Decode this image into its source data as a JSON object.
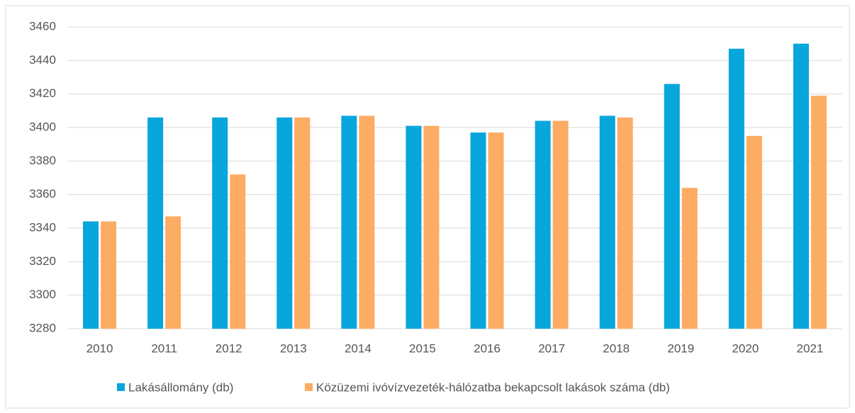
{
  "chart_data": {
    "type": "bar",
    "categories": [
      "2010",
      "2011",
      "2012",
      "2013",
      "2014",
      "2015",
      "2016",
      "2017",
      "2018",
      "2019",
      "2020",
      "2021"
    ],
    "series": [
      {
        "name": "Lakásállomány (db)",
        "color": "#07a6dc",
        "values": [
          3344,
          3406,
          3406,
          3406,
          3407,
          3401,
          3397,
          3404,
          3407,
          3426,
          3447,
          3450
        ]
      },
      {
        "name": "Közüzemi ivóvízvezeték-hálózatba bekapcsolt lakások száma (db)",
        "color": "#fdac63",
        "values": [
          3344,
          3347,
          3372,
          3406,
          3407,
          3401,
          3397,
          3404,
          3406,
          3364,
          3395,
          3419
        ]
      }
    ],
    "ylim": [
      3280,
      3460
    ],
    "yticks": [
      3280,
      3300,
      3320,
      3340,
      3360,
      3380,
      3400,
      3420,
      3440,
      3460
    ],
    "grid": true,
    "legend": "bottom"
  }
}
